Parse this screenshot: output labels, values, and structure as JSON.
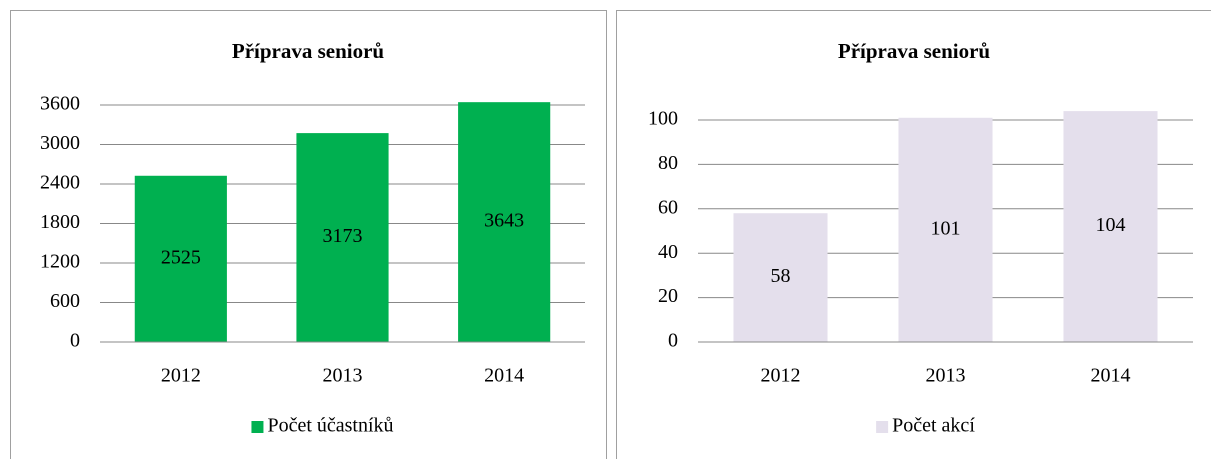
{
  "chart_data": [
    {
      "type": "bar",
      "title": "Příprava seniorů",
      "categories": [
        "2012",
        "2013",
        "2014"
      ],
      "series": [
        {
          "name": "Počet účastníků",
          "color": "#00b050",
          "values": [
            2525,
            3173,
            3643
          ]
        }
      ],
      "ylim": [
        0,
        3600
      ],
      "yticks": [
        0,
        600,
        1200,
        1800,
        2400,
        3000,
        3600
      ],
      "grid": true,
      "legend": "bottom"
    },
    {
      "type": "bar",
      "title": "Příprava seniorů",
      "categories": [
        "2012",
        "2013",
        "2014"
      ],
      "series": [
        {
          "name": "Počet akcí",
          "color": "#e4dfec",
          "values": [
            58,
            101,
            104
          ]
        }
      ],
      "ylim": [
        0,
        100
      ],
      "yticks": [
        0,
        20,
        40,
        60,
        80,
        100
      ],
      "grid": true,
      "legend": "bottom"
    }
  ]
}
